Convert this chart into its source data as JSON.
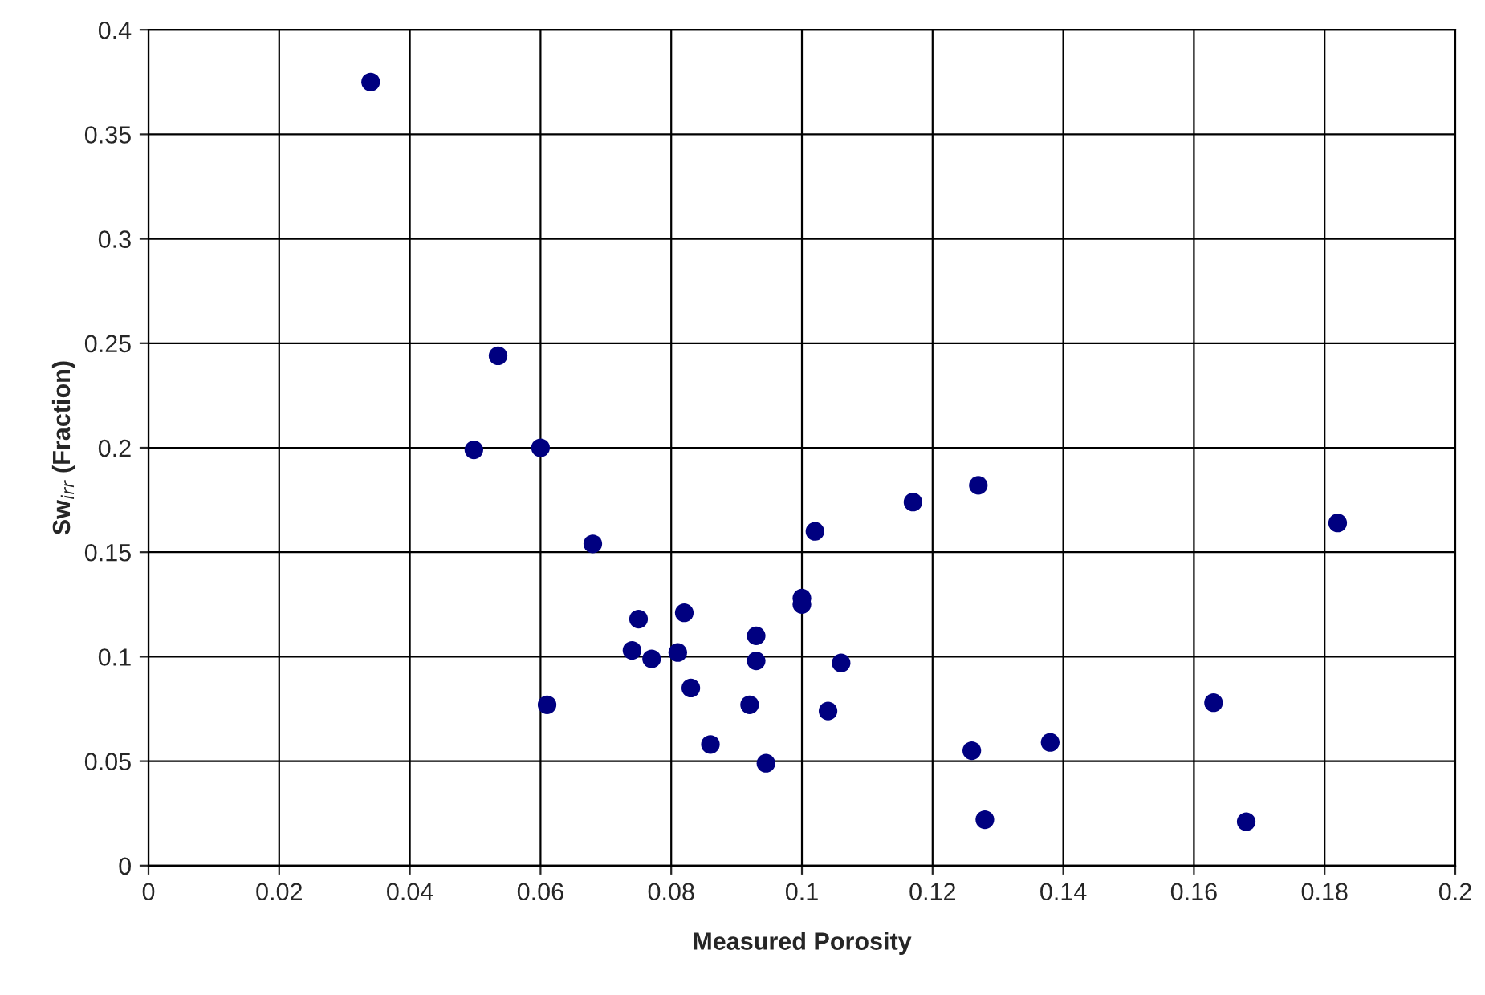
{
  "chart_data": {
    "type": "scatter",
    "xlabel": "Measured Porosity",
    "ylabel": "Sw$_{irr}$ (Fraction)",
    "x": [
      0.034,
      0.0535,
      0.0498,
      0.06,
      0.068,
      0.061,
      0.075,
      0.074,
      0.077,
      0.081,
      0.082,
      0.083,
      0.086,
      0.092,
      0.093,
      0.093,
      0.0945,
      0.1,
      0.1,
      0.102,
      0.104,
      0.106,
      0.117,
      0.126,
      0.127,
      0.128,
      0.138,
      0.163,
      0.168,
      0.182
    ],
    "series": [
      {
        "color": "#000080",
        "values": [
          0.375,
          0.244,
          0.199,
          0.2,
          0.154,
          0.077,
          0.118,
          0.103,
          0.099,
          0.102,
          0.121,
          0.085,
          0.058,
          0.077,
          0.11,
          0.098,
          0.049,
          0.128,
          0.125,
          0.16,
          0.074,
          0.097,
          0.174,
          0.055,
          0.182,
          0.022,
          0.059,
          0.078,
          0.021,
          0.164
        ]
      }
    ],
    "xlim": [
      0,
      0.2
    ],
    "xticks": [
      0,
      0.02,
      0.04,
      0.06,
      0.08,
      0.1,
      0.12,
      0.14,
      0.16,
      0.18,
      0.2
    ],
    "ylim": [
      0,
      0.4
    ],
    "yticks": [
      0,
      0.05,
      0.1,
      0.15,
      0.2,
      0.25,
      0.3,
      0.35,
      0.4
    ],
    "grid": true,
    "marker": "circle"
  }
}
